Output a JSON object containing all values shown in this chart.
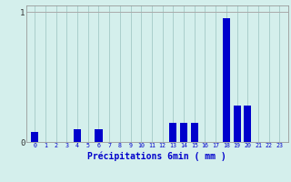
{
  "categories": [
    0,
    1,
    2,
    3,
    4,
    5,
    6,
    7,
    8,
    9,
    10,
    11,
    12,
    13,
    14,
    15,
    16,
    17,
    18,
    19,
    20,
    21,
    22,
    23
  ],
  "values": [
    0.08,
    0.0,
    0.0,
    0.0,
    0.1,
    0.0,
    0.1,
    0.0,
    0.0,
    0.0,
    0.0,
    0.0,
    0.0,
    0.15,
    0.15,
    0.15,
    0.0,
    0.0,
    0.95,
    0.28,
    0.28,
    0.0,
    0.0,
    0.0
  ],
  "bar_color": "#0000cc",
  "bg_color": "#d4efec",
  "grid_color": "#aacfcc",
  "xlabel": "Précipitations 6min ( mm )",
  "xlabel_color": "#0000cc",
  "ylim": [
    0,
    1.05
  ],
  "yticks": [
    0,
    1
  ],
  "ytick_labels": [
    "0",
    "1"
  ],
  "bar_width": 0.7
}
